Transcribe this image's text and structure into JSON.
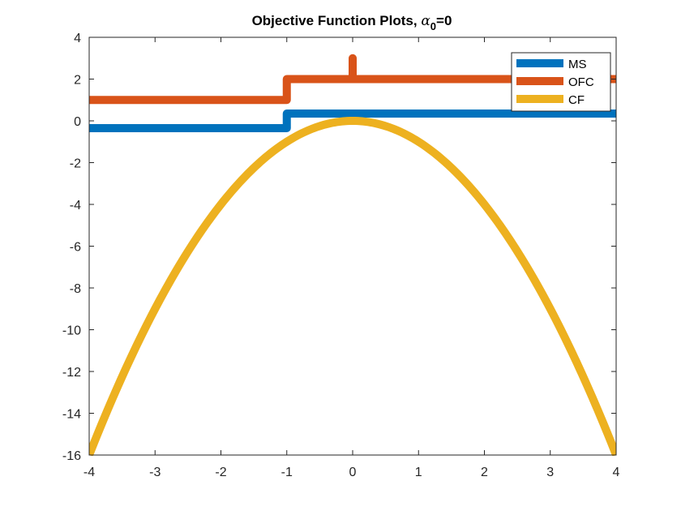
{
  "chart_data": {
    "type": "line",
    "title_main": "Objective Function Plots, ",
    "title_symbol": "α",
    "title_subscript": "0",
    "title_suffix": "=0",
    "xlim": [
      -4,
      4
    ],
    "ylim": [
      -16,
      4
    ],
    "x_ticks": [
      "-4",
      "-3",
      "-2",
      "-1",
      "0",
      "1",
      "2",
      "3",
      "4"
    ],
    "y_ticks": [
      "4",
      "2",
      "0",
      "-2",
      "-4",
      "-6",
      "-8",
      "-10",
      "-12",
      "-14",
      "-16"
    ],
    "grid": false,
    "legend_position": "top-right",
    "series": [
      {
        "name": "MS",
        "color": "#0072BD",
        "x": [
          -4,
          -1,
          -1,
          4
        ],
        "y": [
          -0.35,
          -0.35,
          0.35,
          0.35
        ]
      },
      {
        "name": "OFC",
        "color": "#D95319",
        "x": [
          -4,
          -1,
          -1,
          0,
          0,
          0,
          4
        ],
        "y": [
          1,
          1,
          2,
          2,
          3,
          2,
          2
        ]
      },
      {
        "name": "CF",
        "color": "#EDB120",
        "x": [
          -4,
          -3.5,
          -3,
          -2.5,
          -2,
          -1.5,
          -1,
          -0.5,
          0,
          0.5,
          1,
          1.5,
          2,
          2.5,
          3,
          3.5,
          4
        ],
        "y": [
          -16,
          -12.25,
          -9,
          -6.25,
          -4,
          -2.25,
          -1,
          -0.25,
          0,
          -0.25,
          -1,
          -2.25,
          -4,
          -6.25,
          -9,
          -12.25,
          -16
        ]
      }
    ]
  }
}
